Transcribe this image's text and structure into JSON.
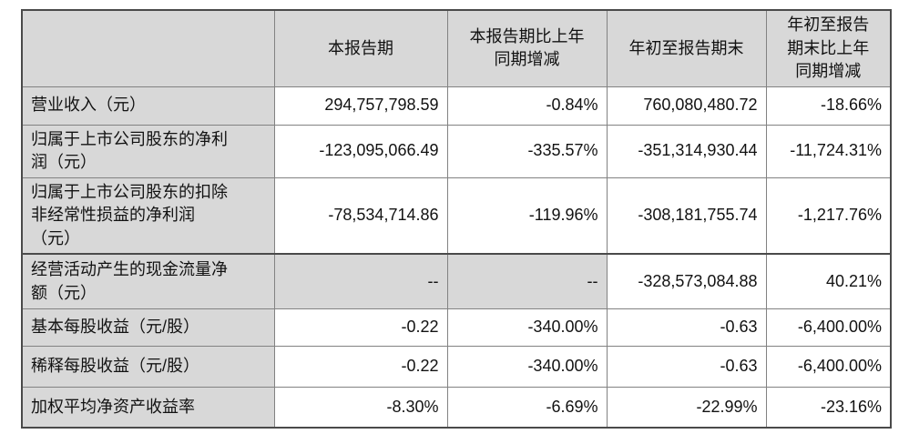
{
  "document": {
    "type": "financial-report-key-metrics-table",
    "language": "zh-CN"
  },
  "colors": {
    "cell_fill_gray": "#d8d8d8",
    "cell_fill_white": "#ffffff",
    "border_inner": "#828282",
    "border_outer": "#4a4a4a",
    "text": "#121212"
  },
  "table": {
    "headers": [
      "",
      "本报告期",
      "本报告期比上年\n同期增减",
      "年初至报告期末",
      "年初至报告\n期末比上年\n同期增减"
    ],
    "rows": [
      {
        "label": "营业收入（元）",
        "values": [
          "294,757,798.59",
          "-0.84%",
          "760,080,480.72",
          "-18.66%"
        ]
      },
      {
        "label": "归属于上市公司股东的净利\n润（元）",
        "values": [
          "-123,095,066.49",
          "-335.57%",
          "-351,314,930.44",
          "-11,724.31%"
        ]
      },
      {
        "label": "归属于上市公司股东的扣除\n非经常性损益的净利润\n（元）",
        "values": [
          "-78,534,714.86",
          "-119.96%",
          "-308,181,755.74",
          "-1,217.76%"
        ]
      },
      {
        "label": "经营活动产生的现金流量净\n额（元）",
        "values": [
          "--",
          "--",
          "-328,573,084.88",
          "40.21%"
        ]
      },
      {
        "label": "基本每股收益（元/股）",
        "values": [
          "-0.22",
          "-340.00%",
          "-0.63",
          "-6,400.00%"
        ]
      },
      {
        "label": "稀释每股收益（元/股）",
        "values": [
          "-0.22",
          "-340.00%",
          "-0.63",
          "-6,400.00%"
        ]
      },
      {
        "label": "加权平均净资产收益率",
        "values": [
          "-8.30%",
          "-6.69%",
          "-22.99%",
          "-23.16%"
        ]
      }
    ]
  }
}
